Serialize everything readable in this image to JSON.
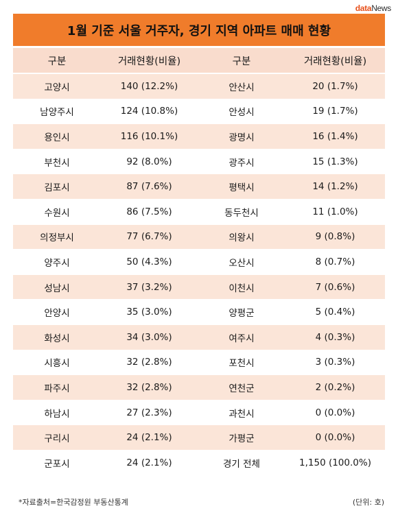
{
  "logo": {
    "brand_a": "data",
    "brand_b": "News"
  },
  "title": "1월 기준 서울 거주자, 경기 지역 아파트 매매 현황",
  "headers": [
    "구분",
    "거래현황(비율)",
    "구분",
    "거래현황(비율)"
  ],
  "footer": {
    "source": "*자료출처=한국감정원 부동산통계",
    "unit": "(단위: 호)"
  },
  "chart_data": {
    "type": "table",
    "title": "1월 기준 서울 거주자, 경기 지역 아파트 매매 현황",
    "columns": [
      "구분",
      "거래현황(비율)",
      "구분",
      "거래현황(비율)"
    ],
    "rows": [
      [
        "고양시",
        "140 (12.2%)",
        "안산시",
        "20 (1.7%)"
      ],
      [
        "남양주시",
        "124 (10.8%)",
        "안성시",
        "19 (1.7%)"
      ],
      [
        "용인시",
        "116 (10.1%)",
        "광명시",
        "16 (1.4%)"
      ],
      [
        "부천시",
        "92 (8.0%)",
        "광주시",
        "15 (1.3%)"
      ],
      [
        "김포시",
        "87 (7.6%)",
        "평택시",
        "14 (1.2%)"
      ],
      [
        "수원시",
        "86 (7.5%)",
        "동두천시",
        "11 (1.0%)"
      ],
      [
        "의정부시",
        "77 (6.7%)",
        "의왕시",
        "9 (0.8%)"
      ],
      [
        "양주시",
        "50 (4.3%)",
        "오산시",
        "8 (0.7%)"
      ],
      [
        "성남시",
        "37 (3.2%)",
        "이천시",
        "7 (0.6%)"
      ],
      [
        "안양시",
        "35 (3.0%)",
        "양평군",
        "5 (0.4%)"
      ],
      [
        "화성시",
        "34 (3.0%)",
        "여주시",
        "4 (0.3%)"
      ],
      [
        "시흥시",
        "32 (2.8%)",
        "포천시",
        "3 (0.3%)"
      ],
      [
        "파주시",
        "32 (2.8%)",
        "연천군",
        "2 (0.2%)"
      ],
      [
        "하남시",
        "27 (2.3%)",
        "과천시",
        "0 (0.0%)"
      ],
      [
        "구리시",
        "24 (2.1%)",
        "가평군",
        "0 (0.0%)"
      ],
      [
        "군포시",
        "24 (2.1%)",
        "경기 전체",
        "1,150 (100.0%)"
      ]
    ],
    "colors": {
      "title_bg": "#f07c2b",
      "header_bg": "#f9dccd",
      "stripe_bg": "#fbe5d8"
    }
  }
}
